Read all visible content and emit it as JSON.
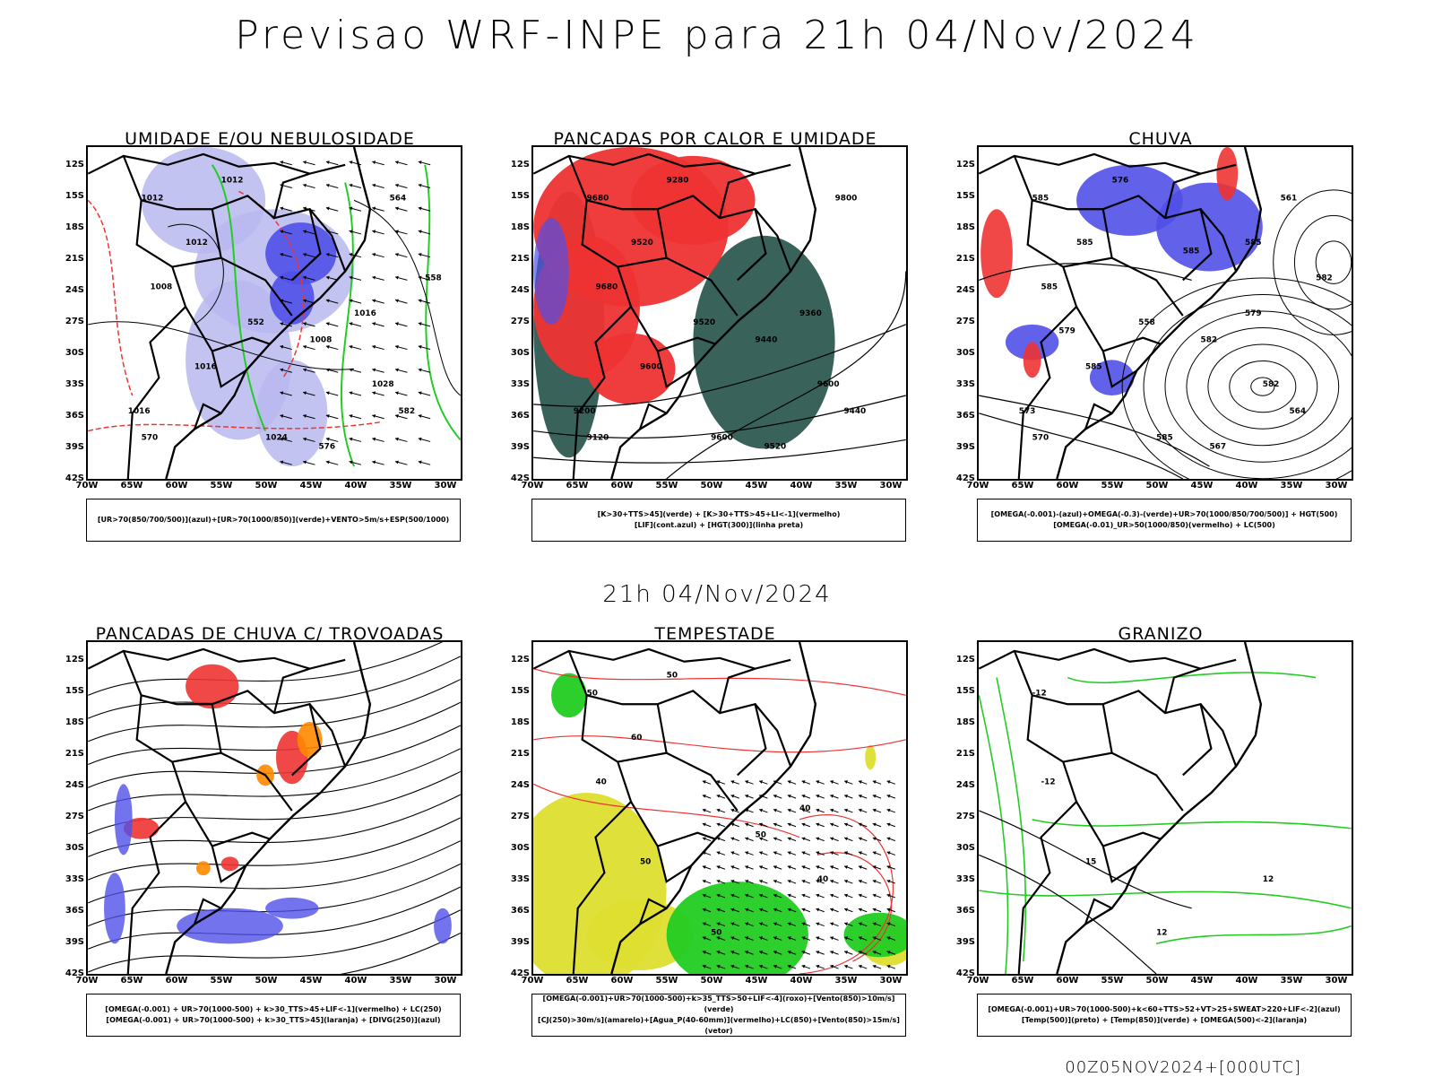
{
  "title": "Previsao WRF-INPE  para 21h 04/Nov/2024",
  "subtitle": "21h 04/Nov/2024",
  "footer": "00Z05NOV2024+[000UTC]",
  "lat_labels": [
    "12S",
    "15S",
    "18S",
    "21S",
    "24S",
    "27S",
    "30S",
    "33S",
    "36S",
    "39S",
    "42S"
  ],
  "lon_labels": [
    "70W",
    "65W",
    "60W",
    "55W",
    "50W",
    "45W",
    "40W",
    "35W",
    "30W"
  ],
  "colors": {
    "blue_light": "#b8b8f0",
    "blue": "#5050e8",
    "green": "#22cc22",
    "red": "#ee3333",
    "dark_green": "#2e5a52",
    "yellow": "#dede30",
    "orange": "#ff8800",
    "black": "#000000"
  },
  "panels": [
    {
      "title": "UMIDADE E/OU NEBULOSIDADE",
      "legend": [
        "[UR>70(850/700/500)](azul)+[UR>70(1000/850)](verde)+VENTO>5m/s+ESP(500/1000)"
      ],
      "contour_labels": [
        "1012",
        "1008",
        "1016",
        "1028",
        "1024",
        "1012",
        "1008",
        "1016",
        "1012",
        "1016",
        "570",
        "576",
        "582",
        "564",
        "552",
        "558"
      ]
    },
    {
      "title": "PANCADAS POR CALOR E UMIDADE",
      "legend": [
        "[K>30+TTS>45](verde) + [K>30+TTS>45+LI<-1](vermelho)",
        "[LIF](cont.azul) + [HGT(300)](linha preta)"
      ],
      "contour_labels": [
        "9680",
        "9680",
        "9600",
        "9600",
        "9600",
        "9520",
        "9440",
        "9360",
        "9280",
        "9200",
        "9120",
        "9520",
        "9440",
        "9800",
        "9520"
      ]
    },
    {
      "title": "CHUVA",
      "legend": [
        "[OMEGA(-0.001)-(azul)+OMEGA(-0.3)-(verde)+UR>70(1000/850/700/500)] + HGT(500)",
        "[OMEGA(-0.01)_UR>50(1000/850)(vermelho) + LC(500)"
      ],
      "contour_labels": [
        "585",
        "585",
        "585",
        "582",
        "585",
        "585",
        "582",
        "579",
        "576",
        "573",
        "570",
        "567",
        "564",
        "561",
        "558",
        "582",
        "585",
        "579",
        "585"
      ]
    },
    {
      "title": "PANCADAS DE CHUVA C/ TROVOADAS",
      "legend": [
        "[OMEGA(-0.001) + UR>70(1000-500) + k>30_TTS>45+LIF<-1](vermelho) + LC(250)",
        "[OMEGA(-0.001) + UR>70(1000-500) + k>30_TTS>45](laranja) + [DIVG(250)](azul)"
      ],
      "contour_labels": []
    },
    {
      "title": "TEMPESTADE",
      "legend": [
        "[OMEGA(-0.001)+UR>70(1000-500)+k>35_TTS>50+LIF<-4](roxo)+[Vento(850)>10m/s](verde)",
        "[CJ(250)>30m/s](amarelo)+[Agua_P(40-60mm)](vermelho)+LC(850)+[Vento(850)>15m/s](vetor)"
      ],
      "contour_labels": [
        "50",
        "40",
        "50",
        "40",
        "50",
        "60",
        "50",
        "40",
        "50"
      ]
    },
    {
      "title": "GRANIZO",
      "legend": [
        "[OMEGA(-0.001)+UR>70(1000-500)+k<60+TTS>52+VT>25+SWEAT>220+LIF<-2](azul)",
        "[Temp(500)](preto) + [Temp(850)](verde) + [OMEGA(500)<-2](laranja)"
      ],
      "contour_labels": [
        "-12",
        "-12",
        "15",
        "12",
        "12"
      ]
    }
  ]
}
